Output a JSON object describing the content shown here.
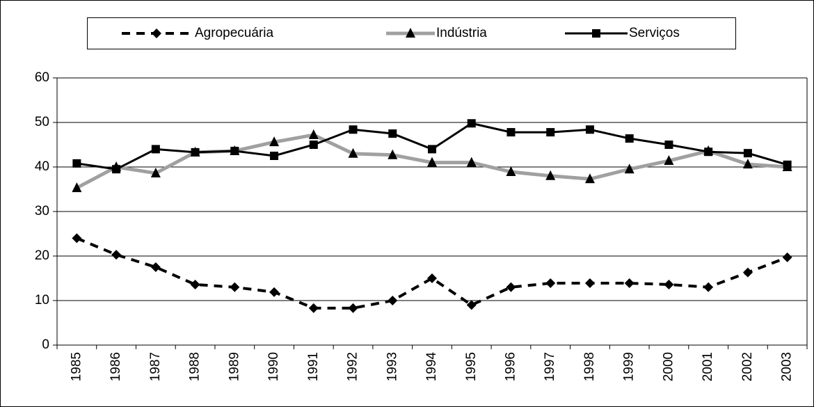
{
  "chart_data": {
    "type": "line",
    "categories": [
      "1985",
      "1986",
      "1987",
      "1988",
      "1989",
      "1990",
      "1991",
      "1992",
      "1993",
      "1994",
      "1995",
      "1996",
      "1997",
      "1998",
      "1999",
      "2000",
      "2001",
      "2002",
      "2003"
    ],
    "series": [
      {
        "name": "Agropecuária",
        "color": "#000000",
        "dash": "dashed",
        "marker": "diamond",
        "values": [
          24,
          20.3,
          17.5,
          13.6,
          13,
          11.9,
          8.3,
          8.3,
          10,
          15,
          9,
          13,
          13.9,
          13.9,
          13.9,
          13.6,
          13,
          16.3,
          19.7
        ]
      },
      {
        "name": "Indústria",
        "color": "#a0a0a0",
        "dash": "solid",
        "marker": "triangle",
        "values": [
          35.3,
          40,
          38.6,
          43.3,
          43.6,
          45.6,
          47.2,
          43,
          42.7,
          41,
          41,
          38.9,
          38,
          37.3,
          39.5,
          41.4,
          43.6,
          40.6,
          40
        ]
      },
      {
        "name": "Serviços",
        "color": "#000000",
        "dash": "solid",
        "marker": "square",
        "values": [
          40.8,
          39.5,
          44,
          43.3,
          43.6,
          42.5,
          45,
          48.4,
          47.5,
          44,
          49.8,
          47.8,
          47.8,
          48.4,
          46.4,
          45,
          43.4,
          43.1,
          40.5
        ]
      }
    ],
    "ylim": [
      0,
      60
    ],
    "yticks": [
      0,
      10,
      20,
      30,
      40,
      50,
      60
    ],
    "grid": true,
    "legend": "top"
  }
}
